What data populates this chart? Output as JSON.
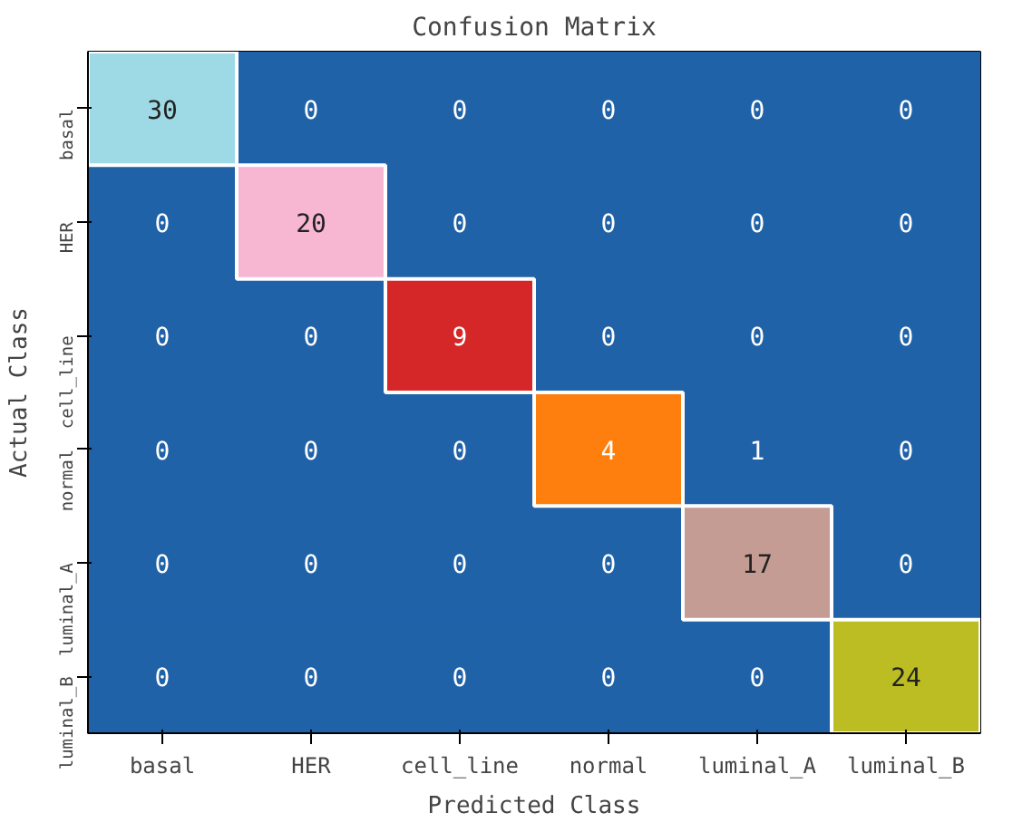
{
  "chart_data": {
    "type": "heatmap",
    "title": "Confusion Matrix",
    "xlabel": "Predicted Class",
    "ylabel": "Actual Class",
    "categories": [
      "basal",
      "HER",
      "cell_line",
      "normal",
      "luminal_A",
      "luminal_B"
    ],
    "y_categories": [
      "basal",
      "HER",
      "cell_line",
      "normal",
      "luminal_A",
      "luminal_B"
    ],
    "cells": [
      [
        30,
        0,
        0,
        0,
        0,
        0
      ],
      [
        0,
        20,
        0,
        0,
        0,
        0
      ],
      [
        0,
        0,
        9,
        0,
        0,
        0
      ],
      [
        0,
        0,
        0,
        4,
        1,
        0
      ],
      [
        0,
        0,
        0,
        0,
        17,
        0
      ],
      [
        0,
        0,
        0,
        0,
        0,
        24
      ]
    ],
    "colors": [
      [
        "#9edae5",
        "#2062a8",
        "#2062a8",
        "#2062a8",
        "#2062a8",
        "#2062a8"
      ],
      [
        "#2062a8",
        "#f7b6d2",
        "#2062a8",
        "#2062a8",
        "#2062a8",
        "#2062a8"
      ],
      [
        "#2062a8",
        "#2062a8",
        "#d62728",
        "#2062a8",
        "#2062a8",
        "#2062a8"
      ],
      [
        "#2062a8",
        "#2062a8",
        "#2062a8",
        "#ff7f0e",
        "#2062a8",
        "#2062a8"
      ],
      [
        "#2062a8",
        "#2062a8",
        "#2062a8",
        "#2062a8",
        "#c49c94",
        "#2062a8"
      ],
      [
        "#2062a8",
        "#2062a8",
        "#2062a8",
        "#2062a8",
        "#2062a8",
        "#bcbd22"
      ]
    ],
    "data_labels": true
  }
}
